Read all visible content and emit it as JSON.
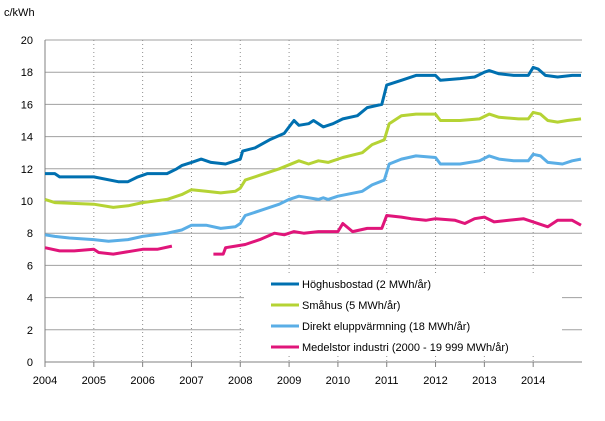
{
  "chart_data": {
    "type": "line",
    "ylabel": "c/kWh",
    "ylim": [
      0,
      20
    ],
    "yticks": [
      0,
      2,
      4,
      6,
      8,
      10,
      12,
      14,
      16,
      18,
      20
    ],
    "xlim": [
      2004,
      2015
    ],
    "xticks": [
      "2004",
      "2005",
      "2006",
      "2007",
      "2008",
      "2009",
      "2010",
      "2011",
      "2012",
      "2013",
      "2014"
    ],
    "grid": "horizontal solid, vertical dotted",
    "legend_position": "bottom-right inside",
    "series": [
      {
        "name": "Höghusbostad (2 MWh/år)",
        "color": "#0070b0",
        "points": [
          [
            2004,
            11.7
          ],
          [
            2004.2,
            11.7
          ],
          [
            2004.3,
            11.5
          ],
          [
            2005,
            11.5
          ],
          [
            2005.5,
            11.2
          ],
          [
            2005.7,
            11.2
          ],
          [
            2005.9,
            11.5
          ],
          [
            2006.1,
            11.7
          ],
          [
            2006.5,
            11.7
          ],
          [
            2006.7,
            12.0
          ],
          [
            2006.8,
            12.2
          ],
          [
            2007,
            12.4
          ],
          [
            2007.2,
            12.6
          ],
          [
            2007.4,
            12.4
          ],
          [
            2007.7,
            12.3
          ],
          [
            2007.9,
            12.5
          ],
          [
            2008,
            12.6
          ],
          [
            2008.05,
            13.1
          ],
          [
            2008.3,
            13.3
          ],
          [
            2008.6,
            13.8
          ],
          [
            2008.9,
            14.2
          ],
          [
            2009,
            14.6
          ],
          [
            2009.1,
            15.0
          ],
          [
            2009.2,
            14.7
          ],
          [
            2009.4,
            14.8
          ],
          [
            2009.5,
            15.0
          ],
          [
            2009.7,
            14.6
          ],
          [
            2009.9,
            14.8
          ],
          [
            2010.1,
            15.1
          ],
          [
            2010.4,
            15.3
          ],
          [
            2010.6,
            15.8
          ],
          [
            2010.9,
            16.0
          ],
          [
            2011,
            17.2
          ],
          [
            2011.3,
            17.5
          ],
          [
            2011.6,
            17.8
          ],
          [
            2012,
            17.8
          ],
          [
            2012.1,
            17.5
          ],
          [
            2012.5,
            17.6
          ],
          [
            2012.8,
            17.7
          ],
          [
            2013,
            18.0
          ],
          [
            2013.1,
            18.1
          ],
          [
            2013.3,
            17.9
          ],
          [
            2013.6,
            17.8
          ],
          [
            2013.9,
            17.8
          ],
          [
            2014,
            18.3
          ],
          [
            2014.1,
            18.2
          ],
          [
            2014.25,
            17.8
          ],
          [
            2014.5,
            17.7
          ],
          [
            2014.8,
            17.8
          ],
          [
            2014.98,
            17.8
          ]
        ]
      },
      {
        "name": "Småhus (5 MWh/år)",
        "color": "#b5d334",
        "points": [
          [
            2004,
            10.1
          ],
          [
            2004.2,
            9.9
          ],
          [
            2005,
            9.8
          ],
          [
            2005.4,
            9.6
          ],
          [
            2005.7,
            9.7
          ],
          [
            2006,
            9.9
          ],
          [
            2006.5,
            10.1
          ],
          [
            2006.8,
            10.4
          ],
          [
            2007,
            10.7
          ],
          [
            2007.3,
            10.6
          ],
          [
            2007.6,
            10.5
          ],
          [
            2007.9,
            10.6
          ],
          [
            2008,
            10.8
          ],
          [
            2008.1,
            11.3
          ],
          [
            2008.4,
            11.6
          ],
          [
            2008.8,
            12.0
          ],
          [
            2009.2,
            12.5
          ],
          [
            2009.4,
            12.3
          ],
          [
            2009.6,
            12.5
          ],
          [
            2009.8,
            12.4
          ],
          [
            2010.1,
            12.7
          ],
          [
            2010.5,
            13.0
          ],
          [
            2010.7,
            13.5
          ],
          [
            2010.95,
            13.8
          ],
          [
            2011.05,
            14.8
          ],
          [
            2011.3,
            15.3
          ],
          [
            2011.6,
            15.4
          ],
          [
            2012,
            15.4
          ],
          [
            2012.1,
            15.0
          ],
          [
            2012.5,
            15.0
          ],
          [
            2012.9,
            15.1
          ],
          [
            2013.1,
            15.4
          ],
          [
            2013.3,
            15.2
          ],
          [
            2013.7,
            15.1
          ],
          [
            2013.9,
            15.1
          ],
          [
            2014,
            15.5
          ],
          [
            2014.15,
            15.4
          ],
          [
            2014.3,
            15.0
          ],
          [
            2014.5,
            14.9
          ],
          [
            2014.7,
            15.0
          ],
          [
            2014.98,
            15.1
          ]
        ]
      },
      {
        "name": "Direkt eluppvärmning (18 MWh/år)",
        "color": "#5aaee6",
        "points": [
          [
            2004,
            7.9
          ],
          [
            2004.2,
            7.8
          ],
          [
            2004.5,
            7.7
          ],
          [
            2005,
            7.6
          ],
          [
            2005.3,
            7.5
          ],
          [
            2005.7,
            7.6
          ],
          [
            2006,
            7.8
          ],
          [
            2006.5,
            8.0
          ],
          [
            2006.8,
            8.2
          ],
          [
            2007,
            8.5
          ],
          [
            2007.3,
            8.5
          ],
          [
            2007.6,
            8.3
          ],
          [
            2007.9,
            8.4
          ],
          [
            2008,
            8.6
          ],
          [
            2008.1,
            9.1
          ],
          [
            2008.5,
            9.5
          ],
          [
            2008.8,
            9.8
          ],
          [
            2009,
            10.1
          ],
          [
            2009.2,
            10.3
          ],
          [
            2009.6,
            10.1
          ],
          [
            2009.7,
            10.2
          ],
          [
            2009.8,
            10.1
          ],
          [
            2010,
            10.3
          ],
          [
            2010.5,
            10.6
          ],
          [
            2010.7,
            11.0
          ],
          [
            2010.95,
            11.3
          ],
          [
            2011.05,
            12.3
          ],
          [
            2011.3,
            12.6
          ],
          [
            2011.6,
            12.8
          ],
          [
            2012,
            12.7
          ],
          [
            2012.1,
            12.3
          ],
          [
            2012.5,
            12.3
          ],
          [
            2012.9,
            12.5
          ],
          [
            2013.1,
            12.8
          ],
          [
            2013.3,
            12.6
          ],
          [
            2013.6,
            12.5
          ],
          [
            2013.9,
            12.5
          ],
          [
            2014,
            12.9
          ],
          [
            2014.15,
            12.8
          ],
          [
            2014.3,
            12.4
          ],
          [
            2014.6,
            12.3
          ],
          [
            2014.8,
            12.5
          ],
          [
            2014.98,
            12.6
          ]
        ]
      },
      {
        "name": "Medelstor industri (2000 - 19 999 MWh/år)",
        "color": "#e0157a",
        "points": [
          [
            2004,
            7.1
          ],
          [
            2004.3,
            6.9
          ],
          [
            2004.6,
            6.9
          ],
          [
            2005,
            7.0
          ],
          [
            2005.1,
            6.8
          ],
          [
            2005.4,
            6.7
          ],
          [
            2005.6,
            6.8
          ],
          [
            2006,
            7.0
          ],
          [
            2006.3,
            7.0
          ],
          [
            2006.6,
            7.2
          ],
          null,
          [
            2007.45,
            6.7
          ],
          [
            2007.65,
            6.7
          ],
          [
            2007.7,
            7.1
          ],
          [
            2007.9,
            7.2
          ],
          [
            2008.1,
            7.3
          ],
          [
            2008.4,
            7.6
          ],
          [
            2008.7,
            8.0
          ],
          [
            2008.9,
            7.9
          ],
          [
            2009.1,
            8.1
          ],
          [
            2009.3,
            8.0
          ],
          [
            2009.6,
            8.1
          ],
          [
            2010,
            8.1
          ],
          [
            2010.1,
            8.6
          ],
          [
            2010.3,
            8.1
          ],
          [
            2010.6,
            8.3
          ],
          [
            2010.9,
            8.3
          ],
          [
            2011,
            9.1
          ],
          [
            2011.3,
            9.0
          ],
          [
            2011.5,
            8.9
          ],
          [
            2011.8,
            8.8
          ],
          [
            2012,
            8.9
          ],
          [
            2012.4,
            8.8
          ],
          [
            2012.6,
            8.6
          ],
          [
            2012.8,
            8.9
          ],
          [
            2013,
            9.0
          ],
          [
            2013.2,
            8.7
          ],
          [
            2013.5,
            8.8
          ],
          [
            2013.8,
            8.9
          ],
          [
            2014,
            8.7
          ],
          [
            2014.3,
            8.4
          ],
          [
            2014.5,
            8.8
          ],
          [
            2014.8,
            8.8
          ],
          [
            2014.98,
            8.5
          ]
        ]
      }
    ]
  }
}
